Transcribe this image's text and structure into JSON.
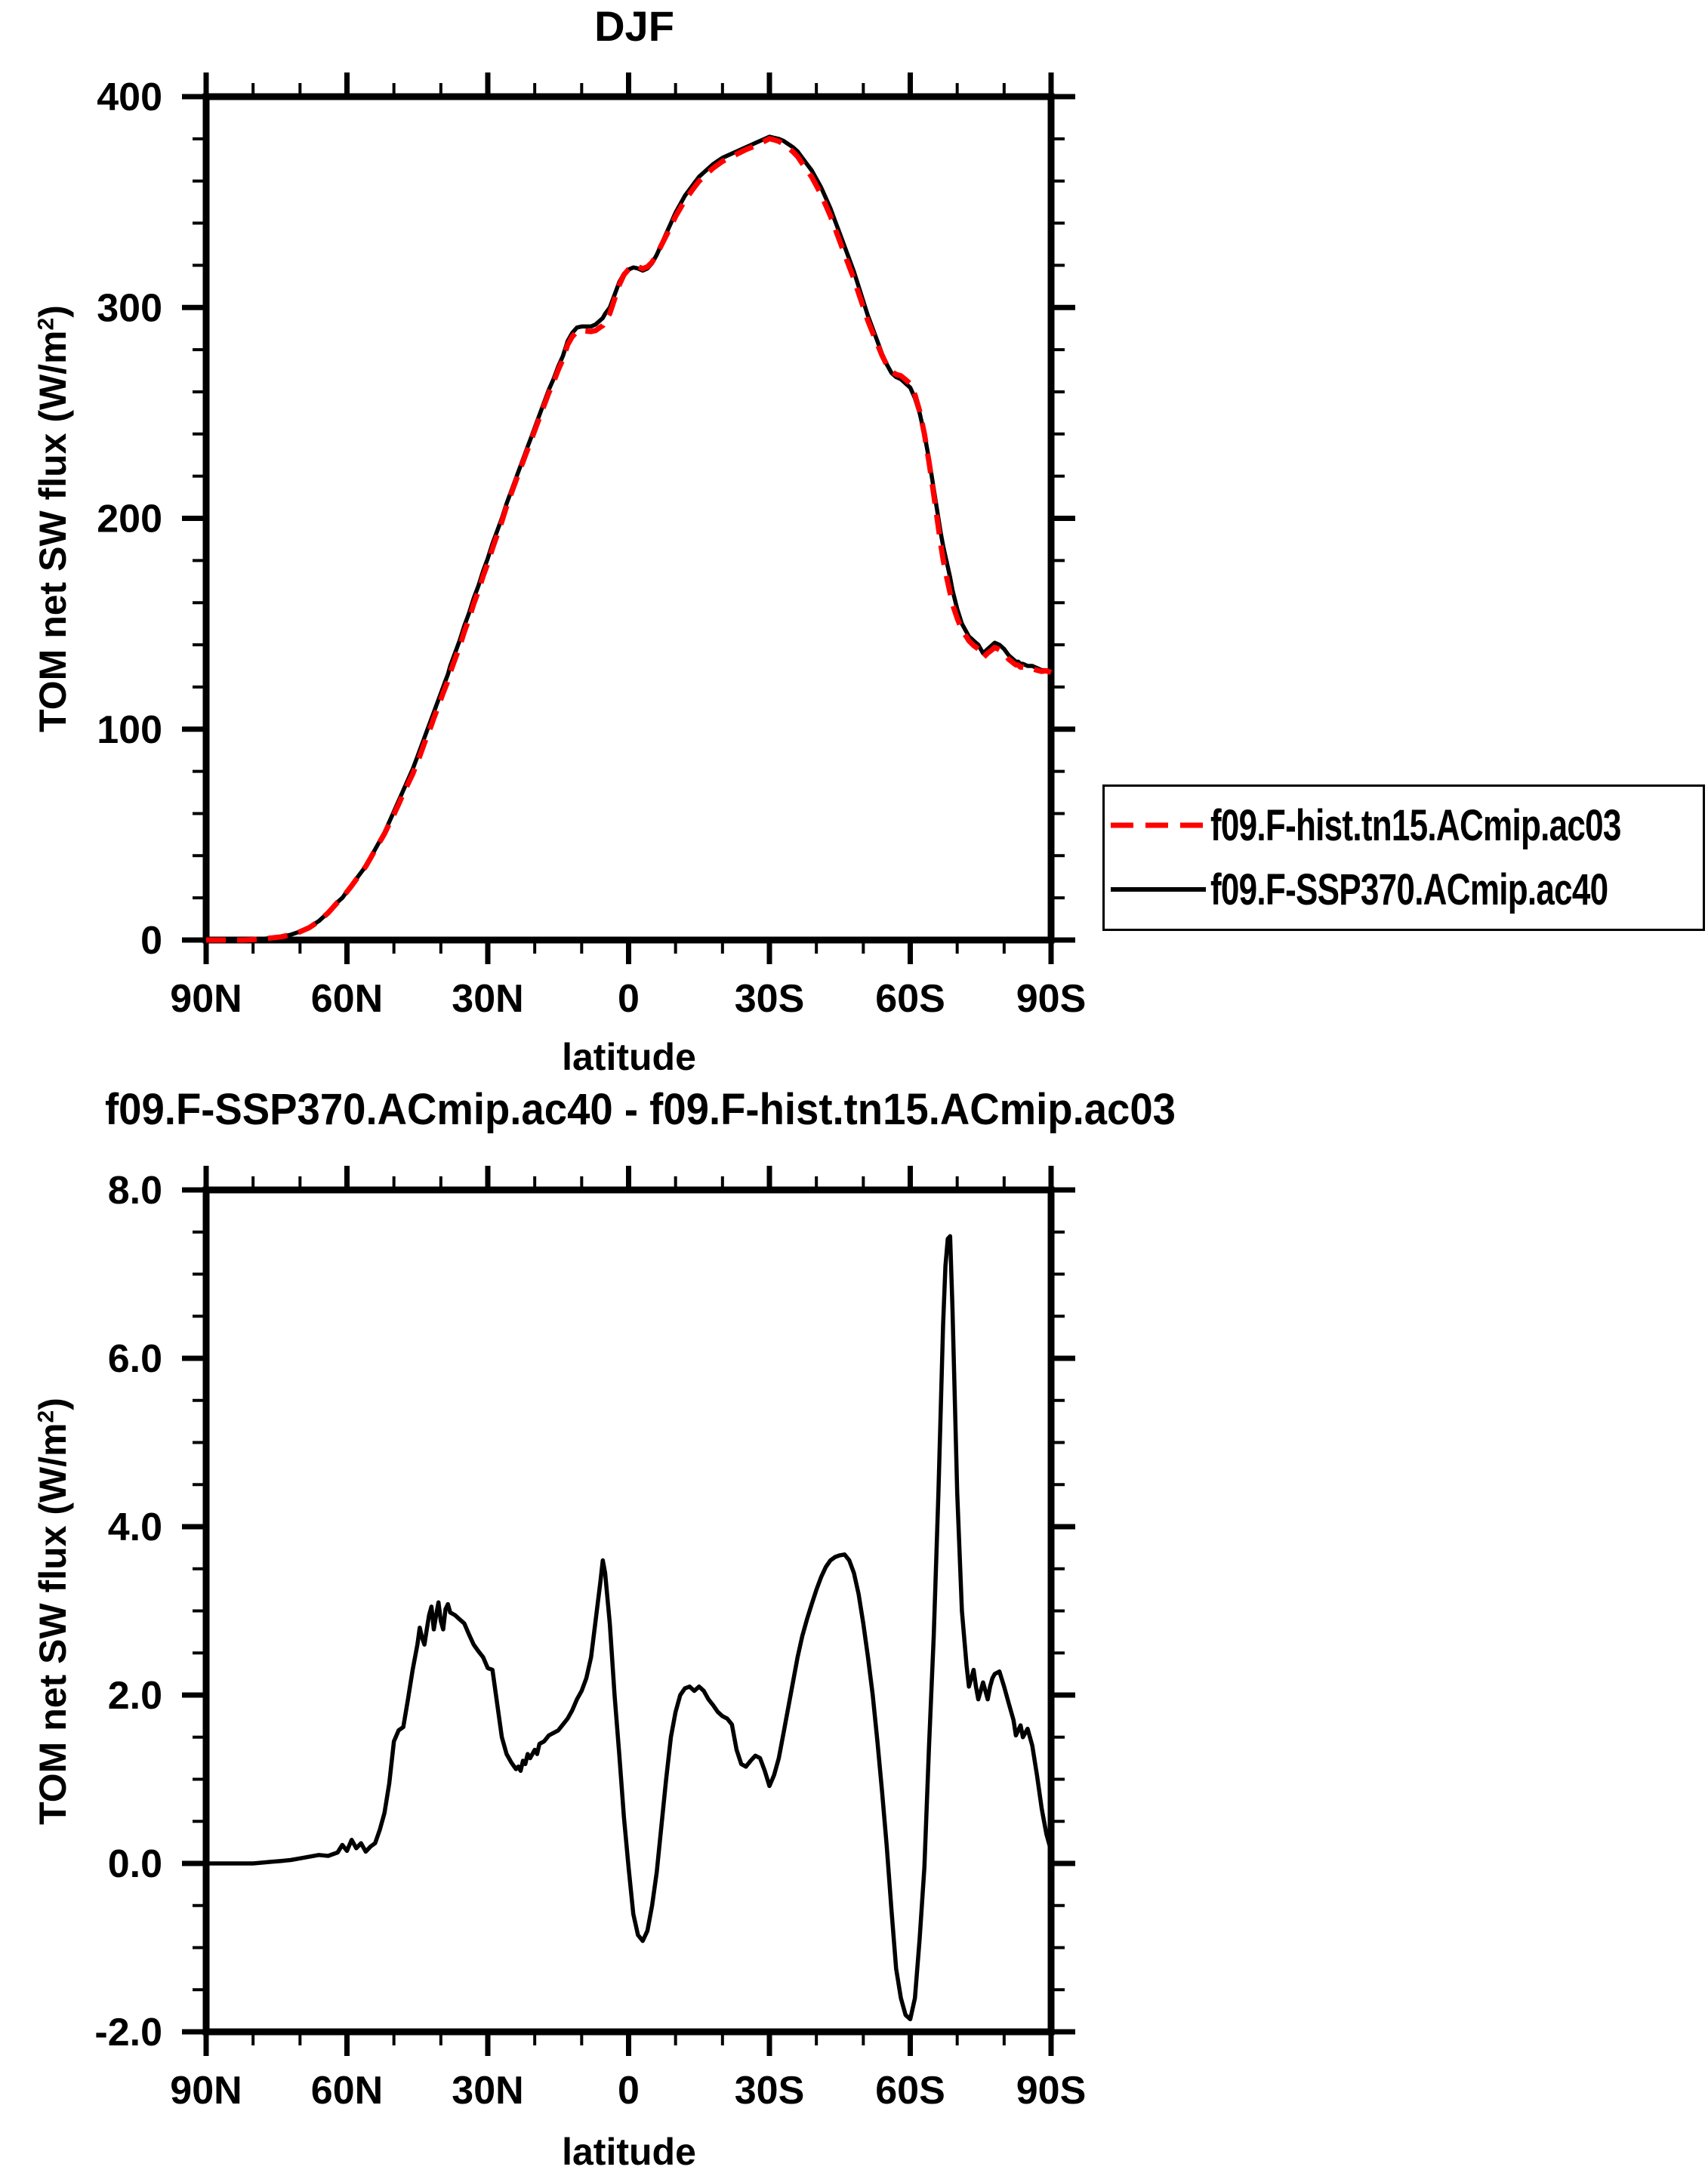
{
  "colors": {
    "hist": "#ff0000",
    "ssp370": "#000000",
    "axis": "#000000",
    "background": "#ffffff"
  },
  "legend": {
    "items": [
      {
        "label": "f09.F-hist.tn15.ACmip.ac03",
        "color": "#ff0000",
        "style": "dashed"
      },
      {
        "label": "f09.F-SSP370.ACmip.ac40",
        "color": "#000000",
        "style": "solid"
      }
    ]
  },
  "chart_data": [
    {
      "id": "top",
      "type": "line",
      "title": "DJF",
      "xlabel": "latitude",
      "ylabel": "TOM net SW flux (W/m2)",
      "ylabel_parts": {
        "pre": "TOM net SW flux (W/m",
        "sup": "2",
        "post": ")"
      },
      "xlim": [
        90,
        -90
      ],
      "ylim": [
        0,
        400
      ],
      "grid": false,
      "legend_position": "outside-right",
      "xticks": [
        {
          "v": 90,
          "label": "90N"
        },
        {
          "v": 60,
          "label": "60N"
        },
        {
          "v": 30,
          "label": "30N"
        },
        {
          "v": 0,
          "label": "0"
        },
        {
          "v": -30,
          "label": "30S"
        },
        {
          "v": -60,
          "label": "60S"
        },
        {
          "v": -90,
          "label": "90S"
        }
      ],
      "xtick_minor_step": 10,
      "yticks": [
        {
          "v": 0,
          "label": "0"
        },
        {
          "v": 100,
          "label": "100"
        },
        {
          "v": 200,
          "label": "200"
        },
        {
          "v": 300,
          "label": "300"
        },
        {
          "v": 400,
          "label": "400"
        }
      ],
      "ytick_minor_step": 20,
      "x": [
        90,
        88,
        86,
        84,
        82,
        80,
        78,
        76,
        74,
        72,
        70,
        68,
        66,
        64,
        62,
        61,
        60,
        59,
        58,
        57,
        56,
        55,
        54,
        53,
        52,
        51,
        50,
        49,
        48,
        47,
        46,
        45,
        44.5,
        44,
        43.5,
        43,
        42.5,
        42,
        41.5,
        41,
        40.5,
        40,
        39.5,
        39,
        38.5,
        38,
        37,
        36,
        35,
        34,
        33,
        32,
        31,
        30,
        29,
        28,
        27,
        26,
        25,
        24,
        23.5,
        23,
        22.5,
        22,
        21.5,
        21,
        20,
        19.5,
        19,
        18,
        17,
        16,
        15,
        14,
        13,
        12,
        11,
        10,
        9,
        8,
        7,
        6,
        5.5,
        5,
        4,
        3,
        2,
        1,
        0,
        -1,
        -2,
        -3,
        -4,
        -5,
        -6,
        -7,
        -8,
        -9,
        -10,
        -11,
        -12,
        -13,
        -14,
        -15,
        -16,
        -17,
        -18,
        -19,
        -20,
        -21,
        -22,
        -23,
        -24,
        -25,
        -26,
        -27,
        -28,
        -29,
        -30,
        -31,
        -32,
        -33,
        -34,
        -35,
        -36,
        -37,
        -38,
        -39,
        -40,
        -41,
        -42,
        -43,
        -44,
        -45,
        -46,
        -47,
        -48,
        -49,
        -50,
        -51,
        -52,
        -53,
        -54,
        -55,
        -56,
        -57,
        -58,
        -59,
        -60,
        -61,
        -62,
        -63,
        -64,
        -65,
        -66,
        -66.5,
        -67,
        -67.5,
        -68,
        -68.5,
        -69,
        -70,
        -71,
        -72,
        -72.5,
        -73,
        -73.5,
        -74,
        -74.5,
        -75,
        -75.5,
        -76,
        -76.5,
        -77,
        -77.5,
        -78,
        -79,
        -80,
        -81,
        -82,
        -82.5,
        -83,
        -83.5,
        -84,
        -85,
        -86,
        -87,
        -88,
        -89,
        -90
      ],
      "series": [
        {
          "name": "f09.F-hist.tn15.ACmip.ac03",
          "color": "#ff0000",
          "line_style": "dashed",
          "values": [
            0,
            0,
            0,
            0,
            0,
            0.2,
            0.5,
            1,
            1.5,
            2.5,
            3.9,
            5.9,
            8.9,
            12.9,
            17.9,
            19.8,
            22.9,
            25.7,
            28.8,
            31.8,
            34.9,
            38.8,
            42.8,
            46.6,
            50.4,
            55.1,
            59.6,
            64.4,
            69.4,
            74.1,
            78.7,
            84.4,
            87.2,
            90.3,
            93.4,
            96.2,
            99.1,
            102,
            105.2,
            108.1,
            110.9,
            114.1,
            117.2,
            120,
            122.9,
            127,
            133.1,
            139.1,
            146.2,
            152.3,
            159.4,
            165.5,
            172.6,
            178.7,
            185.7,
            192.1,
            198.5,
            205.7,
            211.8,
            217.9,
            220.9,
            223.9,
            226.8,
            229.8,
            232.7,
            235.8,
            241.7,
            244.7,
            247.6,
            253.6,
            259.5,
            264.5,
            270.4,
            275.4,
            282.3,
            286.2,
            288.6,
            289,
            288.8,
            288.6,
            289.1,
            290.7,
            291.4,
            293.6,
            297.2,
            304,
            310.7,
            315.5,
            318.1,
            319.6,
            319.4,
            318.4,
            319.3,
            321.5,
            325.1,
            329.6,
            334,
            338.5,
            343.2,
            347,
            350.9,
            353.9,
            357,
            359.9,
            362,
            364.1,
            366.1,
            367.7,
            369.3,
            370.3,
            371.4,
            372.7,
            373.8,
            374.9,
            375.8,
            376.7,
            377.8,
            378.9,
            380.1,
            379.5,
            378.8,
            377.5,
            375.7,
            373.9,
            371.6,
            368.3,
            365.1,
            361.9,
            357.8,
            353.6,
            348.5,
            343.4,
            337.4,
            331.3,
            325.3,
            319.4,
            313.6,
            306.8,
            300.2,
            293.6,
            288,
            282.6,
            277.2,
            272.8,
            269.6,
            268.3,
            267.6,
            265.8,
            263.9,
            258.6,
            250.9,
            240.1,
            226.6,
            211.3,
            195.6,
            187.6,
            180.6,
            174.9,
            169.6,
            164.6,
            159.4,
            152.6,
            147,
            143.7,
            141.9,
            140.8,
            139.7,
            138.9,
            138.1,
            136,
            133.9,
            135,
            136.1,
            136.9,
            137.8,
            138.8,
            137.7,
            135.9,
            133.1,
            131.3,
            130.5,
            130.4,
            129.4,
            129.5,
            128.4,
            128.6,
            128,
            127.4,
            127.7,
            126.9
          ]
        },
        {
          "name": "f09.F-SSP370.ACmip.ac40",
          "color": "#000000",
          "line_style": "solid",
          "values": [
            0,
            0,
            0,
            0,
            0,
            0.2,
            0.5,
            1,
            1.5,
            2.5,
            4,
            6,
            9,
            13,
            18,
            20,
            23,
            26,
            29,
            32,
            35,
            39,
            43,
            47,
            51,
            56,
            61,
            66,
            71,
            76,
            81,
            87,
            90,
            93,
            96,
            99,
            102,
            105,
            108,
            111,
            114,
            117,
            120,
            123,
            126,
            130,
            136,
            142,
            149,
            155,
            162,
            168,
            175,
            181,
            188,
            194,
            200,
            207,
            213,
            219,
            222,
            225,
            228,
            231,
            234,
            237,
            243,
            246,
            249,
            255,
            261,
            266,
            272,
            277,
            284,
            288,
            290.5,
            291,
            291,
            291,
            292,
            294,
            295,
            297,
            300,
            306,
            312,
            316,
            318,
            319,
            318.5,
            317.5,
            318.5,
            321,
            325,
            330,
            335,
            340,
            345,
            349,
            353,
            356,
            359,
            362,
            364,
            366,
            368,
            369.5,
            371,
            372,
            373,
            374,
            375,
            376,
            377,
            378,
            379,
            380,
            381,
            380.5,
            380,
            379,
            377.5,
            376,
            374,
            371,
            368,
            365,
            361,
            357,
            352,
            347,
            341,
            335,
            329,
            323,
            317,
            310,
            303,
            296,
            290,
            284,
            278,
            273,
            269,
            267,
            266,
            264,
            262,
            257,
            250,
            240,
            228,
            214,
            200,
            193,
            187,
            182,
            177,
            172,
            166,
            157,
            150,
            146,
            144,
            143,
            142,
            141,
            140,
            138,
            136,
            137,
            138,
            139,
            140,
            141,
            140,
            138,
            135,
            133,
            132,
            132,
            131,
            131,
            130,
            130,
            129,
            128,
            128,
            127
          ]
        }
      ]
    },
    {
      "id": "diff",
      "type": "line",
      "title": "f09.F-SSP370.ACmip.ac40 - f09.F-hist.tn15.ACmip.ac03",
      "xlabel": "latitude",
      "ylabel": "TOM net SW flux (W/m2)",
      "ylabel_parts": {
        "pre": "TOM net SW flux (W/m",
        "sup": "2",
        "post": ")"
      },
      "xlim": [
        90,
        -90
      ],
      "ylim": [
        -2,
        8
      ],
      "grid": false,
      "xticks": [
        {
          "v": 90,
          "label": "90N"
        },
        {
          "v": 60,
          "label": "60N"
        },
        {
          "v": 30,
          "label": "30N"
        },
        {
          "v": 0,
          "label": "0"
        },
        {
          "v": -30,
          "label": "30S"
        },
        {
          "v": -60,
          "label": "60S"
        },
        {
          "v": -90,
          "label": "90S"
        }
      ],
      "xtick_minor_step": 10,
      "yticks": [
        {
          "v": -2,
          "label": "-2.0"
        },
        {
          "v": 0,
          "label": "0.0"
        },
        {
          "v": 2,
          "label": "2.0"
        },
        {
          "v": 4,
          "label": "4.0"
        },
        {
          "v": 6,
          "label": "6.0"
        },
        {
          "v": 8,
          "label": "8.0"
        }
      ],
      "ytick_minor_step": 0.5,
      "x": [
        90,
        88,
        86,
        84,
        82,
        80,
        78,
        76,
        74,
        72,
        70,
        68,
        66,
        64,
        62,
        61,
        60,
        59,
        58,
        57,
        56,
        55,
        54,
        53,
        52,
        51,
        50,
        49,
        48,
        47,
        46,
        45,
        44.5,
        44,
        43.5,
        43,
        42.5,
        42,
        41.5,
        41,
        40.5,
        40,
        39.5,
        39,
        38.5,
        38,
        37,
        36,
        35,
        34,
        33,
        32,
        31,
        30,
        29,
        28,
        27,
        26,
        25,
        24,
        23.5,
        23,
        22.5,
        22,
        21.5,
        21,
        20,
        19.5,
        19,
        18,
        17,
        16,
        15,
        14,
        13,
        12,
        11,
        10,
        9,
        8,
        7,
        6,
        5.5,
        5,
        4,
        3,
        2,
        1,
        0,
        -1,
        -2,
        -3,
        -4,
        -5,
        -6,
        -7,
        -8,
        -9,
        -10,
        -11,
        -12,
        -13,
        -14,
        -15,
        -16,
        -17,
        -18,
        -19,
        -20,
        -21,
        -22,
        -23,
        -24,
        -25,
        -26,
        -27,
        -28,
        -29,
        -30,
        -31,
        -32,
        -33,
        -34,
        -35,
        -36,
        -37,
        -38,
        -39,
        -40,
        -41,
        -42,
        -43,
        -44,
        -45,
        -46,
        -47,
        -48,
        -49,
        -50,
        -51,
        -52,
        -53,
        -54,
        -55,
        -56,
        -57,
        -58,
        -59,
        -60,
        -61,
        -62,
        -63,
        -64,
        -65,
        -66,
        -66.5,
        -67,
        -67.5,
        -68,
        -68.5,
        -69,
        -70,
        -71,
        -72,
        -72.5,
        -73,
        -73.5,
        -74,
        -74.5,
        -75,
        -75.5,
        -76,
        -76.5,
        -77,
        -77.5,
        -78,
        -79,
        -80,
        -81,
        -82,
        -82.5,
        -83,
        -83.5,
        -84,
        -85,
        -86,
        -87,
        -88,
        -89,
        -90
      ],
      "series": [
        {
          "name": "f09.F-SSP370.ACmip.ac40 - f09.F-hist.tn15.ACmip.ac03",
          "color": "#000000",
          "line_style": "solid",
          "values": [
            0,
            0,
            0,
            0,
            0,
            0,
            0.01,
            0.02,
            0.03,
            0.04,
            0.06,
            0.08,
            0.1,
            0.09,
            0.13,
            0.22,
            0.15,
            0.28,
            0.18,
            0.24,
            0.14,
            0.2,
            0.24,
            0.4,
            0.6,
            0.95,
            1.45,
            1.58,
            1.62,
            1.95,
            2.3,
            2.6,
            2.8,
            2.68,
            2.6,
            2.78,
            2.95,
            3.05,
            2.78,
            2.95,
            3.1,
            2.88,
            2.78,
            3.02,
            3.08,
            2.98,
            2.95,
            2.9,
            2.85,
            2.72,
            2.6,
            2.52,
            2.45,
            2.32,
            2.3,
            1.9,
            1.5,
            1.3,
            1.2,
            1.12,
            1.15,
            1.1,
            1.22,
            1.18,
            1.3,
            1.25,
            1.35,
            1.3,
            1.42,
            1.45,
            1.52,
            1.55,
            1.58,
            1.65,
            1.72,
            1.82,
            1.95,
            2.05,
            2.2,
            2.45,
            2.9,
            3.35,
            3.6,
            3.45,
            2.85,
            2,
            1.3,
            0.55,
            -0.05,
            -0.6,
            -0.85,
            -0.92,
            -0.8,
            -0.5,
            -0.1,
            0.45,
            1,
            1.5,
            1.8,
            2,
            2.08,
            2.1,
            2.05,
            2.1,
            2.05,
            1.95,
            1.88,
            1.8,
            1.75,
            1.72,
            1.65,
            1.35,
            1.18,
            1.15,
            1.22,
            1.28,
            1.25,
            1.1,
            0.92,
            1.05,
            1.25,
            1.55,
            1.85,
            2.15,
            2.45,
            2.7,
            2.9,
            3.08,
            3.25,
            3.4,
            3.52,
            3.6,
            3.64,
            3.66,
            3.67,
            3.6,
            3.45,
            3.2,
            2.85,
            2.45,
            2,
            1.45,
            0.85,
            0.2,
            -0.55,
            -1.25,
            -1.6,
            -1.8,
            -1.85,
            -1.6,
            -0.9,
            -0.05,
            1.4,
            2.7,
            4.4,
            5.4,
            6.4,
            7.1,
            7.42,
            7.45,
            6.6,
            4.4,
            3,
            2.35,
            2.1,
            2.2,
            2.3,
            2.1,
            1.95,
            2.05,
            2.15,
            2.05,
            1.95,
            2.1,
            2.2,
            2.25,
            2.28,
            2.1,
            1.9,
            1.7,
            1.52,
            1.58,
            1.64,
            1.5,
            1.6,
            1.4,
            1.05,
            0.65,
            0.35,
            0.15
          ]
        }
      ]
    }
  ]
}
